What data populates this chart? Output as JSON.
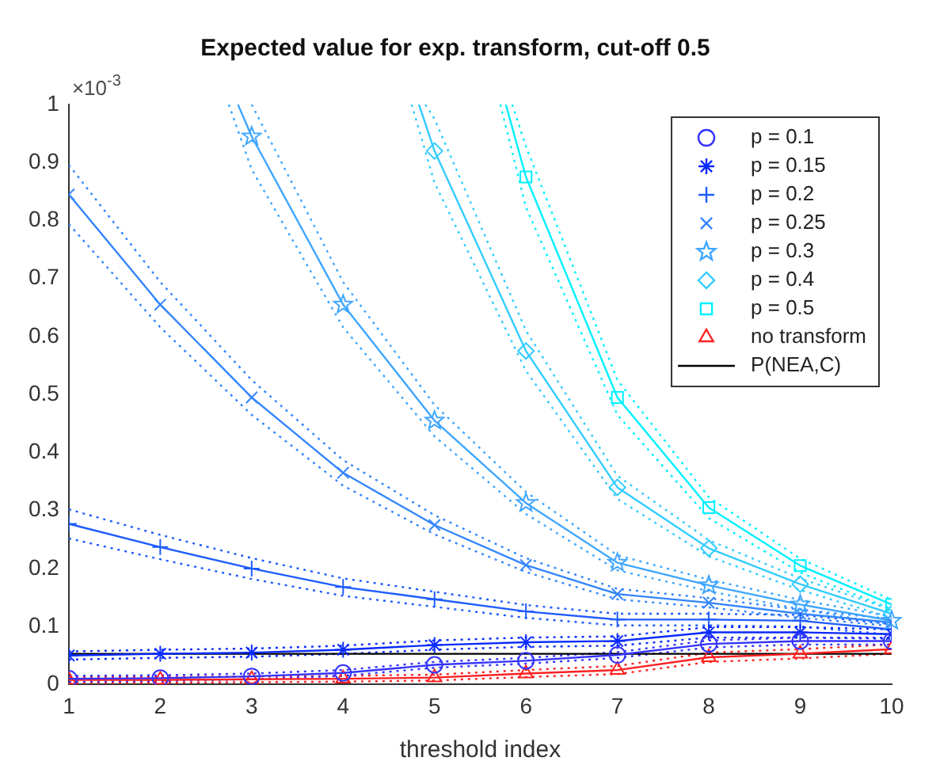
{
  "chart_data": {
    "type": "line",
    "title": "Expected value for exp. transform, cut-off 0.5",
    "xlabel": "threshold index",
    "annotations": [
      "×10$^{-3}$"
    ],
    "x": [
      1,
      2,
      3,
      4,
      5,
      6,
      7,
      8,
      9,
      10
    ],
    "xlim": [
      1,
      10
    ],
    "xticks": [
      1,
      2,
      3,
      4,
      5,
      6,
      7,
      8,
      9,
      10
    ],
    "ylim": [
      0,
      1
    ],
    "yticks": [
      0,
      0.1,
      0.2,
      0.3,
      0.4,
      0.5,
      0.6,
      0.7,
      0.8,
      0.9,
      1
    ],
    "grid": false,
    "legend": "top right",
    "line_style": "solid",
    "series": [
      {
        "name": "p = 0.1",
        "color": "#3333ff",
        "marker": "circle",
        "values": [
          0.01,
          0.011,
          0.014,
          0.02,
          0.034,
          0.041,
          0.051,
          0.07,
          0.075,
          0.075
        ]
      },
      {
        "name": "p = 0.15",
        "color": "#0a2bff",
        "marker": "cross",
        "values": [
          0.05,
          0.053,
          0.055,
          0.06,
          0.068,
          0.073,
          0.075,
          0.09,
          0.09,
          0.087
        ]
      },
      {
        "name": "p = 0.2",
        "color": "#1f5cff",
        "marker": "cross",
        "values": [
          0.277,
          0.237,
          0.2,
          0.168,
          0.147,
          0.126,
          0.112,
          0.112,
          0.11,
          0.095
        ]
      },
      {
        "name": "p = 0.25",
        "color": "#3385ff",
        "marker": "cross",
        "values": [
          0.845,
          0.655,
          0.495,
          0.365,
          0.275,
          0.206,
          0.156,
          0.141,
          0.122,
          0.107
        ]
      },
      {
        "name": "p = 0.3",
        "color": "#3fa6ff",
        "marker": "star",
        "x": [
          2.85,
          3,
          4,
          5,
          6,
          7,
          8,
          9,
          10
        ],
        "values": [
          1.0,
          0.945,
          0.655,
          0.455,
          0.313,
          0.21,
          0.171,
          0.138,
          0.11
        ]
      },
      {
        "name": "p = 0.4",
        "color": "#33ccff",
        "marker": "diamond",
        "x": [
          4.83,
          5,
          6,
          7,
          8,
          9,
          10
        ],
        "values": [
          1.0,
          0.92,
          0.575,
          0.34,
          0.235,
          0.173,
          0.122
        ]
      },
      {
        "name": "p = 0.5",
        "color": "#00f0ff",
        "marker": "square",
        "x": [
          5.78,
          6,
          7,
          8,
          9,
          10
        ],
        "values": [
          1.0,
          0.875,
          0.495,
          0.305,
          0.205,
          0.138
        ]
      },
      {
        "name": "no transform",
        "color": "#ff2020",
        "marker": "triangle",
        "values": [
          0.008,
          0.008,
          0.009,
          0.01,
          0.012,
          0.019,
          0.025,
          0.047,
          0.053,
          0.061
        ]
      },
      {
        "name": "P(NEA,C)",
        "color": "#000000",
        "marker": "none",
        "x": [
          1,
          10
        ],
        "values": [
          0.053,
          0.053
        ]
      },
      {
        "color": "#3333ff",
        "marker": "none",
        "line_style": "dotted",
        "values": [
          0.005,
          0.006,
          0.009,
          0.015,
          0.029,
          0.036,
          0.046,
          0.064,
          0.069,
          0.069
        ]
      },
      {
        "color": "#3333ff",
        "marker": "none",
        "line_style": "dotted",
        "values": [
          0.015,
          0.016,
          0.019,
          0.025,
          0.039,
          0.046,
          0.056,
          0.076,
          0.081,
          0.081
        ]
      },
      {
        "color": "#0a2bff",
        "marker": "none",
        "line_style": "dotted",
        "values": [
          0.043,
          0.046,
          0.048,
          0.053,
          0.06,
          0.065,
          0.067,
          0.081,
          0.081,
          0.079
        ]
      },
      {
        "color": "#0a2bff",
        "marker": "none",
        "line_style": "dotted",
        "values": [
          0.057,
          0.06,
          0.062,
          0.067,
          0.076,
          0.081,
          0.083,
          0.099,
          0.099,
          0.095
        ]
      },
      {
        "color": "#1f5cff",
        "marker": "none",
        "line_style": "dotted",
        "values": [
          0.252,
          0.216,
          0.182,
          0.153,
          0.134,
          0.115,
          0.102,
          0.102,
          0.1,
          0.086
        ]
      },
      {
        "color": "#1f5cff",
        "marker": "none",
        "line_style": "dotted",
        "values": [
          0.302,
          0.258,
          0.218,
          0.183,
          0.16,
          0.137,
          0.122,
          0.122,
          0.12,
          0.104
        ]
      },
      {
        "color": "#3385ff",
        "marker": "none",
        "line_style": "dotted",
        "values": [
          0.794,
          0.616,
          0.465,
          0.343,
          0.259,
          0.194,
          0.147,
          0.133,
          0.115,
          0.101
        ]
      },
      {
        "color": "#3385ff",
        "marker": "none",
        "line_style": "dotted",
        "values": [
          0.896,
          0.694,
          0.525,
          0.387,
          0.292,
          0.218,
          0.165,
          0.149,
          0.129,
          0.113
        ]
      },
      {
        "color": "#3fa6ff",
        "marker": "none",
        "line_style": "dotted",
        "x": [
          2.75,
          3,
          4,
          5,
          6,
          7,
          8,
          9,
          10
        ],
        "values": [
          1.0,
          0.888,
          0.616,
          0.428,
          0.294,
          0.197,
          0.161,
          0.13,
          0.103
        ]
      },
      {
        "color": "#3fa6ff",
        "marker": "none",
        "line_style": "dotted",
        "x": [
          3,
          4,
          5,
          6,
          7,
          8,
          9,
          10
        ],
        "values": [
          1.0,
          0.694,
          0.482,
          0.332,
          0.223,
          0.181,
          0.146,
          0.117
        ]
      },
      {
        "color": "#33ccff",
        "marker": "none",
        "line_style": "dotted",
        "x": [
          4.75,
          5,
          6,
          7,
          8,
          9,
          10
        ],
        "values": [
          1.0,
          0.865,
          0.541,
          0.32,
          0.221,
          0.163,
          0.115
        ]
      },
      {
        "color": "#33ccff",
        "marker": "none",
        "line_style": "dotted",
        "x": [
          4.9,
          5,
          6,
          7,
          8,
          9,
          10
        ],
        "values": [
          1.0,
          0.975,
          0.61,
          0.36,
          0.249,
          0.183,
          0.129
        ]
      },
      {
        "color": "#00f0ff",
        "marker": "none",
        "line_style": "dotted",
        "x": [
          5.72,
          6,
          7,
          8,
          9,
          10
        ],
        "values": [
          1.0,
          0.823,
          0.465,
          0.287,
          0.193,
          0.13
        ]
      },
      {
        "color": "#00f0ff",
        "marker": "none",
        "line_style": "dotted",
        "x": [
          5.85,
          6,
          7,
          8,
          9,
          10
        ],
        "values": [
          1.0,
          0.928,
          0.525,
          0.323,
          0.217,
          0.146
        ]
      },
      {
        "color": "#ff2020",
        "marker": "none",
        "line_style": "dotted",
        "values": [
          0.003,
          0.003,
          0.004,
          0.005,
          0.007,
          0.013,
          0.018,
          0.039,
          0.045,
          0.053
        ]
      },
      {
        "color": "#ff2020",
        "marker": "none",
        "line_style": "dotted",
        "values": [
          0.013,
          0.013,
          0.014,
          0.015,
          0.017,
          0.025,
          0.032,
          0.055,
          0.061,
          0.069
        ]
      }
    ]
  }
}
